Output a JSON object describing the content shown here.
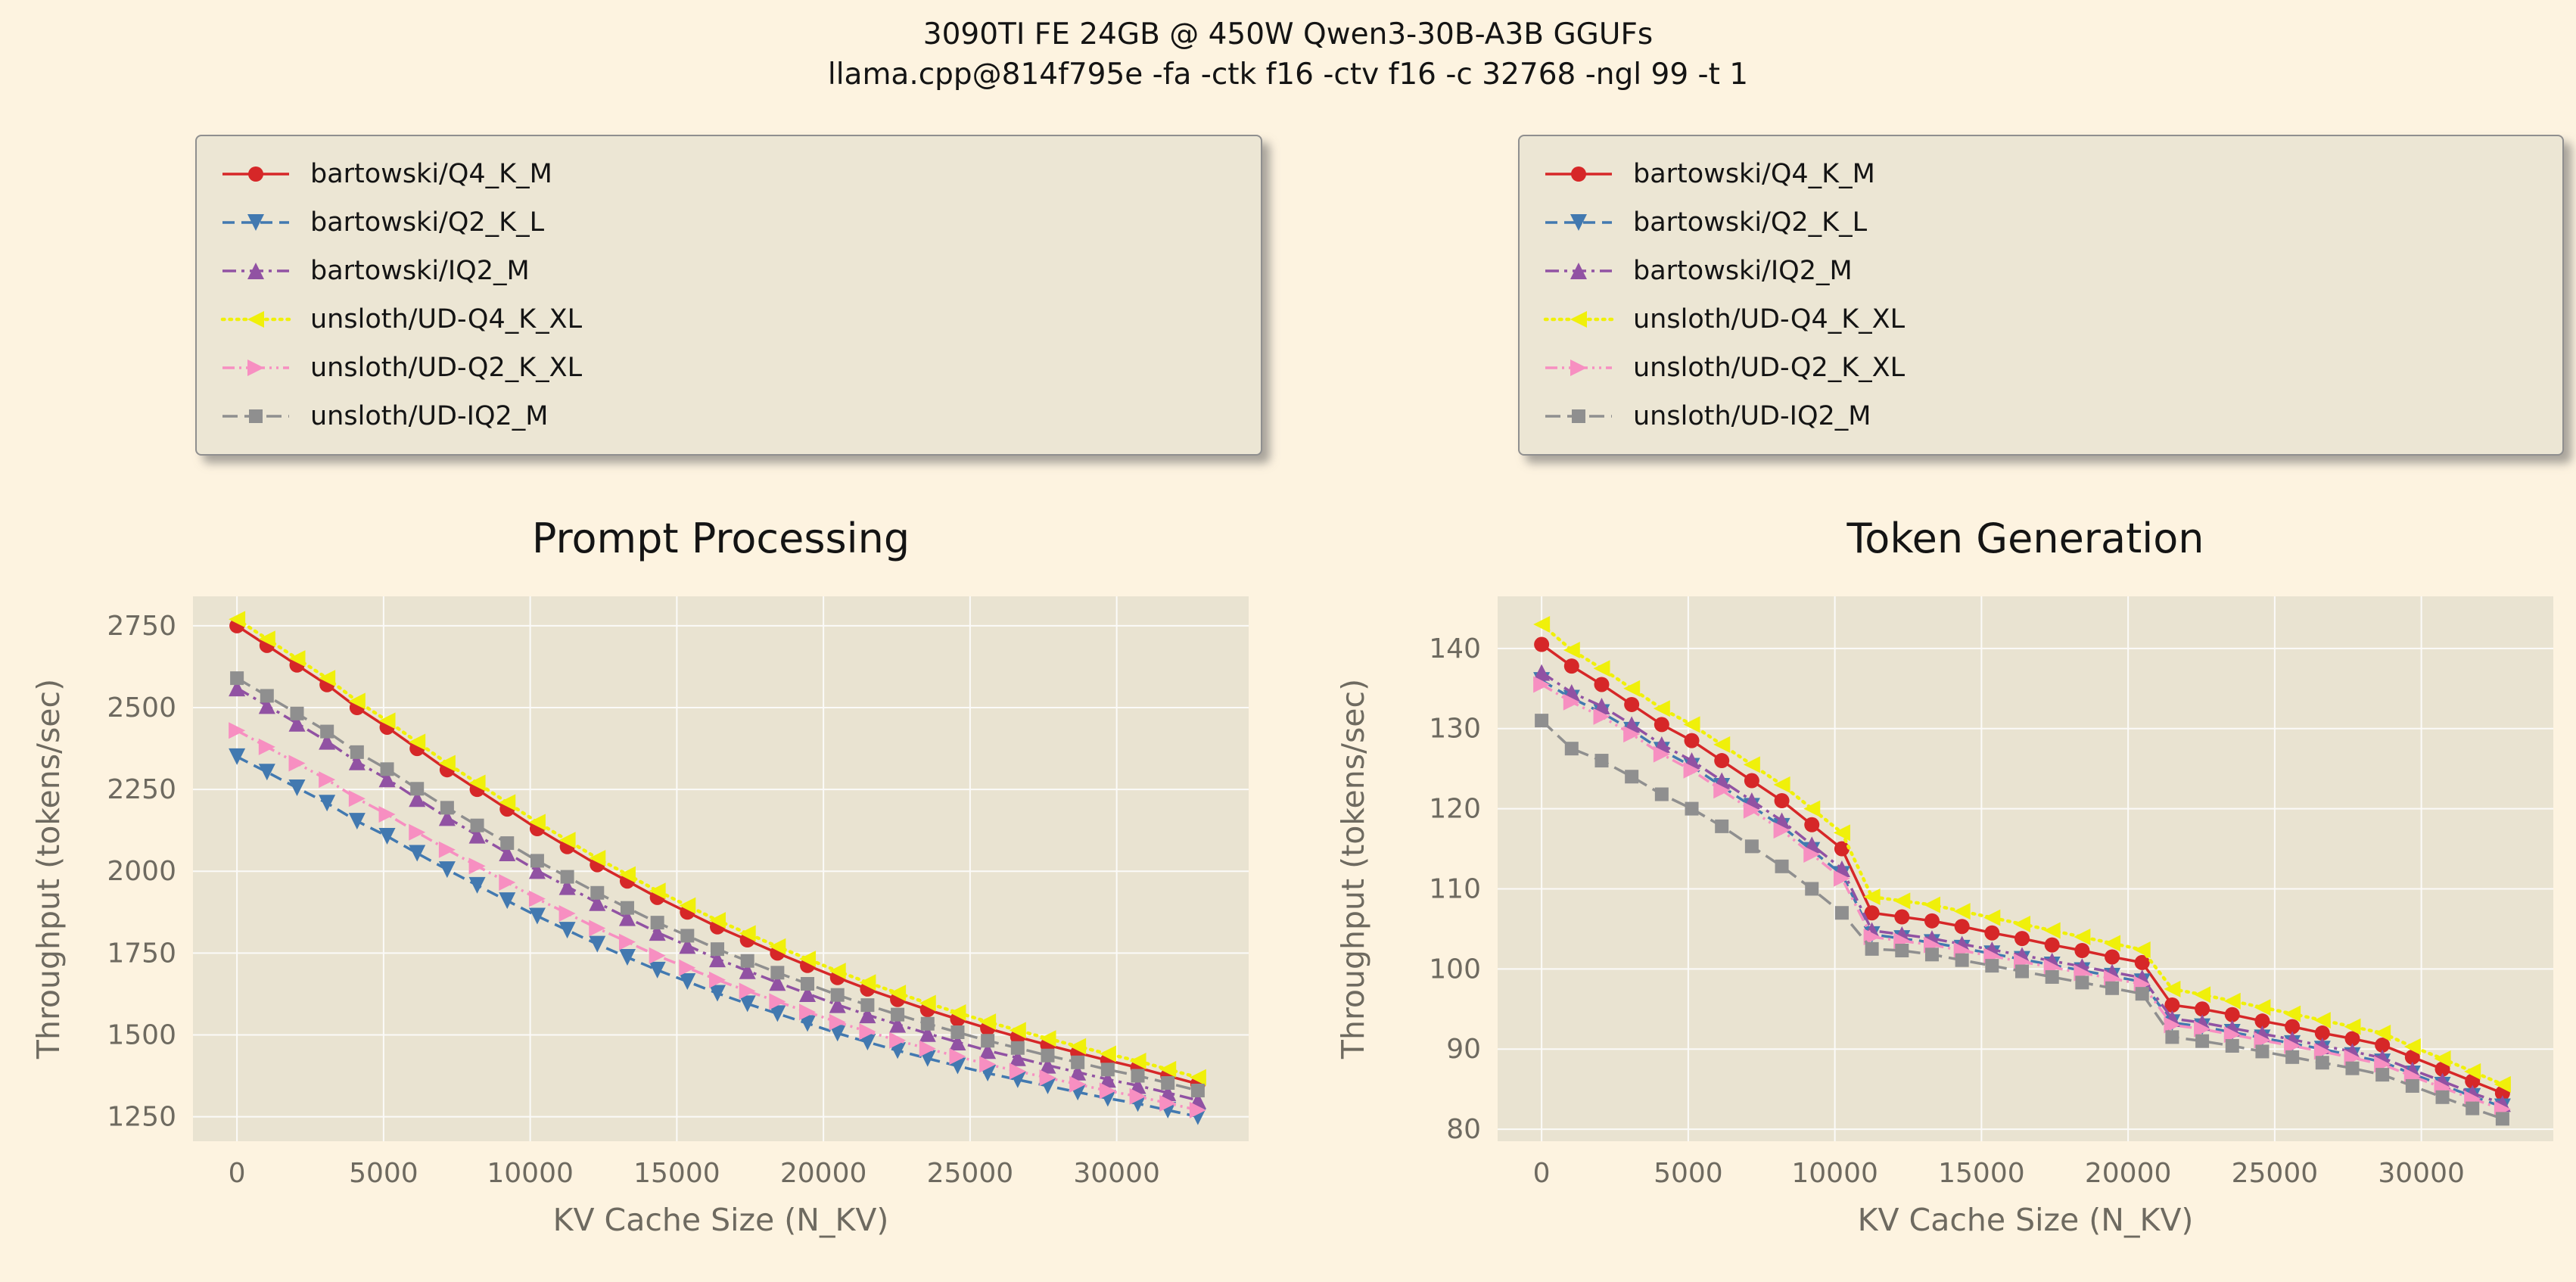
{
  "header": {
    "title_line1": "3090TI FE 24GB @ 450W Qwen3-30B-A3B GGUFs",
    "title_line2": "llama.cpp@814f795e -fa -ctk f16 -ctv f16 -c 32768 -ngl 99 -t 1"
  },
  "style": {
    "page_bg": "#fdf3e0",
    "panel_bg": "#e9e3d1",
    "legend_bg": "#ece6d4",
    "legend_border": "#8f8f8f",
    "grid_color": "#ffffff",
    "tick_color": "#6e6a60",
    "title_color": "#141414"
  },
  "legend": {
    "series": [
      {
        "name": "bartowski/Q4_K_M",
        "label": "bartowski/Q4_K_M",
        "color": "#d62728",
        "dash": "solid",
        "marker": "circle"
      },
      {
        "name": "bartowski/Q2_K_L",
        "label": "bartowski/Q2_K_L",
        "color": "#4279b0",
        "dash": "dashed",
        "marker": "triangle-down"
      },
      {
        "name": "bartowski/IQ2_M",
        "label": "bartowski/IQ2_M",
        "color": "#9152a3",
        "dash": "dashdot",
        "marker": "triangle-up"
      },
      {
        "name": "unsloth/UD-Q4_K_XL",
        "label": "unsloth/UD-Q4_K_XL",
        "color": "#f0f00a",
        "dash": "dotted",
        "marker": "triangle-left"
      },
      {
        "name": "unsloth/UD-Q2_K_XL",
        "label": "unsloth/UD-Q2_K_XL",
        "color": "#f78fc1",
        "dash": "dashdotdot",
        "marker": "triangle-right"
      },
      {
        "name": "unsloth/UD-IQ2_M",
        "label": "unsloth/UD-IQ2_M",
        "color": "#8f8f8f",
        "dash": "longdash",
        "marker": "square"
      }
    ]
  },
  "chart_data": [
    {
      "type": "line",
      "title": "Prompt Processing",
      "xlabel": "KV Cache Size (N_KV)",
      "ylabel": "Throughput (tokens/sec)",
      "xlim": [
        -1500,
        34500
      ],
      "ylim": [
        1175,
        2840
      ],
      "xticks": [
        0,
        5000,
        10000,
        15000,
        20000,
        25000,
        30000
      ],
      "yticks": [
        1250,
        1500,
        1750,
        2000,
        2250,
        2500,
        2750
      ],
      "x": [
        0,
        1024,
        2048,
        3072,
        4096,
        5120,
        6144,
        7168,
        8192,
        9216,
        10240,
        11264,
        12288,
        13312,
        14336,
        15360,
        16384,
        17408,
        18432,
        19456,
        20480,
        21504,
        22528,
        23552,
        24576,
        25600,
        26624,
        27648,
        28672,
        29696,
        30720,
        31744,
        32768
      ],
      "series": [
        {
          "name": "bartowski/Q4_K_M",
          "values": [
            2750,
            2690,
            2630,
            2570,
            2500,
            2440,
            2375,
            2310,
            2250,
            2190,
            2130,
            2075,
            2020,
            1970,
            1920,
            1875,
            1830,
            1790,
            1750,
            1712,
            1675,
            1640,
            1608,
            1577,
            1548,
            1520,
            1494,
            1469,
            1445,
            1422,
            1400,
            1375,
            1350
          ]
        },
        {
          "name": "bartowski/Q2_K_L",
          "values": [
            2350,
            2303,
            2255,
            2208,
            2153,
            2107,
            2055,
            2005,
            1957,
            1910,
            1863,
            1820,
            1777,
            1737,
            1698,
            1663,
            1627,
            1595,
            1565,
            1535,
            1505,
            1478,
            1452,
            1428,
            1405,
            1383,
            1363,
            1344,
            1325,
            1306,
            1290,
            1270,
            1250
          ]
        },
        {
          "name": "bartowski/IQ2_M",
          "values": [
            2560,
            2506,
            2452,
            2397,
            2334,
            2282,
            2222,
            2164,
            2110,
            2056,
            2002,
            1953,
            1904,
            1858,
            1813,
            1773,
            1732,
            1696,
            1660,
            1626,
            1592,
            1561,
            1532,
            1504,
            1478,
            1452,
            1430,
            1407,
            1386,
            1364,
            1345,
            1323,
            1300
          ]
        },
        {
          "name": "unsloth/UD-Q4_K_XL",
          "values": [
            2770,
            2710,
            2650,
            2590,
            2520,
            2460,
            2395,
            2330,
            2270,
            2210,
            2150,
            2095,
            2040,
            1990,
            1940,
            1895,
            1850,
            1810,
            1770,
            1732,
            1695,
            1660,
            1628,
            1597,
            1568,
            1540,
            1514,
            1489,
            1465,
            1442,
            1420,
            1395,
            1370
          ]
        },
        {
          "name": "unsloth/UD-Q2_K_XL",
          "values": [
            2430,
            2380,
            2330,
            2280,
            2222,
            2174,
            2119,
            2066,
            2016,
            1966,
            1916,
            1871,
            1826,
            1784,
            1742,
            1705,
            1668,
            1634,
            1602,
            1570,
            1539,
            1510,
            1483,
            1458,
            1434,
            1410,
            1389,
            1369,
            1349,
            1329,
            1312,
            1291,
            1270
          ]
        },
        {
          "name": "unsloth/UD-IQ2_M",
          "values": [
            2590,
            2536,
            2482,
            2427,
            2364,
            2312,
            2252,
            2194,
            2140,
            2086,
            2032,
            1983,
            1934,
            1888,
            1843,
            1803,
            1762,
            1726,
            1690,
            1656,
            1622,
            1591,
            1562,
            1534,
            1508,
            1482,
            1460,
            1437,
            1416,
            1394,
            1375,
            1353,
            1330
          ]
        }
      ]
    },
    {
      "type": "line",
      "title": "Token Generation",
      "xlabel": "KV Cache Size (N_KV)",
      "ylabel": "Throughput (tokens/sec)",
      "xlim": [
        -1500,
        34500
      ],
      "ylim": [
        78.5,
        146.5
      ],
      "xticks": [
        0,
        5000,
        10000,
        15000,
        20000,
        25000,
        30000
      ],
      "yticks": [
        80,
        90,
        100,
        110,
        120,
        130,
        140
      ],
      "x": [
        0,
        1024,
        2048,
        3072,
        4096,
        5120,
        6144,
        7168,
        8192,
        9216,
        10240,
        11264,
        12288,
        13312,
        14336,
        15360,
        16384,
        17408,
        18432,
        19456,
        20480,
        21504,
        22528,
        23552,
        24576,
        25600,
        26624,
        27648,
        28672,
        29696,
        30720,
        31744,
        32768
      ],
      "series": [
        {
          "name": "bartowski/Q4_K_M",
          "values": [
            140.5,
            137.8,
            135.5,
            133.0,
            130.5,
            128.5,
            126.0,
            123.5,
            121.0,
            118.0,
            115.0,
            107.0,
            106.5,
            106.0,
            105.3,
            104.5,
            103.8,
            103.0,
            102.3,
            101.5,
            100.8,
            95.5,
            95.0,
            94.3,
            93.5,
            92.8,
            92.0,
            91.3,
            90.5,
            89.0,
            87.5,
            86.0,
            84.5
          ]
        },
        {
          "name": "bartowski/Q2_K_L",
          "values": [
            136.0,
            133.8,
            132.0,
            129.8,
            127.3,
            125.3,
            122.8,
            120.3,
            117.8,
            114.8,
            111.8,
            104.3,
            103.8,
            103.3,
            102.6,
            101.9,
            101.2,
            100.5,
            99.8,
            99.1,
            98.4,
            93.3,
            92.8,
            92.1,
            91.4,
            90.7,
            90.0,
            89.2,
            88.4,
            86.9,
            85.5,
            84.1,
            82.8
          ]
        },
        {
          "name": "bartowski/IQ2_M",
          "values": [
            137.0,
            134.5,
            132.8,
            130.5,
            128.0,
            126.0,
            123.5,
            121.0,
            118.5,
            115.5,
            112.5,
            104.8,
            104.3,
            103.8,
            103.1,
            102.4,
            101.7,
            101.0,
            100.3,
            99.6,
            98.9,
            93.8,
            93.3,
            92.6,
            91.9,
            91.2,
            90.4,
            89.7,
            88.9,
            87.4,
            86.0,
            84.5,
            83.2
          ]
        },
        {
          "name": "unsloth/UD-Q4_K_XL",
          "values": [
            143.0,
            139.8,
            137.5,
            135.0,
            132.5,
            130.5,
            128.0,
            125.5,
            123.0,
            120.0,
            117.0,
            109.0,
            108.5,
            108.0,
            107.2,
            106.4,
            105.6,
            104.8,
            104.0,
            103.2,
            102.4,
            97.5,
            96.8,
            96.0,
            95.2,
            94.4,
            93.6,
            92.8,
            92.0,
            90.3,
            88.8,
            87.2,
            85.6
          ]
        },
        {
          "name": "unsloth/UD-Q2_K_XL",
          "values": [
            135.5,
            133.3,
            131.5,
            129.3,
            126.8,
            124.8,
            122.3,
            119.8,
            117.3,
            114.3,
            111.3,
            104.0,
            103.5,
            103.0,
            102.3,
            101.6,
            100.9,
            100.2,
            99.5,
            98.8,
            98.1,
            93.0,
            92.5,
            91.8,
            91.1,
            90.4,
            89.7,
            88.9,
            88.1,
            86.6,
            85.2,
            83.8,
            82.5
          ]
        },
        {
          "name": "unsloth/UD-IQ2_M",
          "values": [
            131.0,
            127.5,
            126.0,
            124.0,
            121.8,
            120.0,
            117.8,
            115.3,
            112.8,
            110.0,
            107.0,
            102.5,
            102.3,
            101.8,
            101.1,
            100.4,
            99.7,
            99.0,
            98.3,
            97.6,
            96.9,
            91.5,
            91.0,
            90.4,
            89.7,
            89.0,
            88.3,
            87.6,
            86.8,
            85.4,
            84.0,
            82.6,
            81.3
          ]
        }
      ]
    }
  ]
}
